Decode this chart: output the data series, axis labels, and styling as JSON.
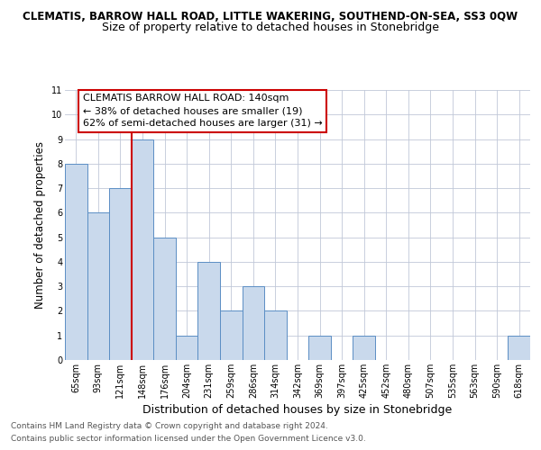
{
  "title": "CLEMATIS, BARROW HALL ROAD, LITTLE WAKERING, SOUTHEND-ON-SEA, SS3 0QW",
  "subtitle": "Size of property relative to detached houses in Stonebridge",
  "xlabel": "Distribution of detached houses by size in Stonebridge",
  "ylabel": "Number of detached properties",
  "categories": [
    "65sqm",
    "93sqm",
    "121sqm",
    "148sqm",
    "176sqm",
    "204sqm",
    "231sqm",
    "259sqm",
    "286sqm",
    "314sqm",
    "342sqm",
    "369sqm",
    "397sqm",
    "425sqm",
    "452sqm",
    "480sqm",
    "507sqm",
    "535sqm",
    "563sqm",
    "590sqm",
    "618sqm"
  ],
  "values": [
    8,
    6,
    7,
    9,
    5,
    1,
    4,
    2,
    3,
    2,
    0,
    1,
    0,
    1,
    0,
    0,
    0,
    0,
    0,
    0,
    1
  ],
  "bar_color": "#c9d9ec",
  "bar_edge_color": "#5b8ec4",
  "background_color": "#ffffff",
  "grid_color": "#c0c8d8",
  "red_line_index": 3,
  "red_line_color": "#cc0000",
  "annotation_line1": "CLEMATIS BARROW HALL ROAD: 140sqm",
  "annotation_line2": "← 38% of detached houses are smaller (19)",
  "annotation_line3": "62% of semi-detached houses are larger (31) →",
  "annotation_box_color": "#ffffff",
  "annotation_box_edge_color": "#cc0000",
  "ylim": [
    0,
    11
  ],
  "yticks": [
    0,
    1,
    2,
    3,
    4,
    5,
    6,
    7,
    8,
    9,
    10,
    11
  ],
  "title_fontsize": 8.5,
  "subtitle_fontsize": 9.0,
  "xlabel_fontsize": 9.0,
  "ylabel_fontsize": 8.5,
  "tick_fontsize": 7.0,
  "annotation_fontsize": 8.0,
  "footer_line1": "Contains HM Land Registry data © Crown copyright and database right 2024.",
  "footer_line2": "Contains public sector information licensed under the Open Government Licence v3.0.",
  "footer_fontsize": 6.5
}
